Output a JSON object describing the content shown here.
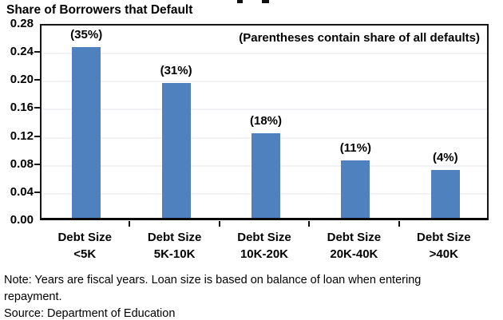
{
  "page": {
    "background": "#ffffff",
    "text_color": "#000000"
  },
  "chart": {
    "title": "Share of Borrowers that Default",
    "annotation": "(Parentheses contain share of all defaults)"
  },
  "chart_data": {
    "type": "bar",
    "title": "Share of Borrowers that Default",
    "categories": [
      "Debt Size <5K",
      "Debt Size 5K-10K",
      "Debt Size 10K-20K",
      "Debt Size 20K-40K",
      "Debt Size >40K"
    ],
    "category_line1": [
      "Debt Size",
      "Debt Size",
      "Debt Size",
      "Debt Size",
      "Debt Size"
    ],
    "category_line2": [
      "<5K",
      "5K-10K",
      "10K-20K",
      "20K-40K",
      ">40K"
    ],
    "values": [
      0.244,
      0.192,
      0.121,
      0.082,
      0.068
    ],
    "bar_labels": [
      "(35%)",
      "(31%)",
      "(18%)",
      "(11%)",
      "(4%)"
    ],
    "annotation": "(Parentheses contain share of all defaults)",
    "xlabel": "",
    "ylabel": "Share of Borrowers that Default",
    "y_tick_labels": [
      "0.28",
      "0.24",
      "0.20",
      "0.16",
      "0.12",
      "0.08",
      "0.04",
      "0.00"
    ],
    "ylim": [
      0,
      0.28
    ],
    "grid": true,
    "legend_position": "none",
    "bar_color": "#4E81BD",
    "gridline_color": "#f1f2f5",
    "axis_color": "#0a0a0a"
  },
  "notes": {
    "note_line1": "Note: Years are fiscal years. Loan size is based on balance of loan when entering",
    "note_line2": "repayment.",
    "source": "Source: Department of Education"
  }
}
